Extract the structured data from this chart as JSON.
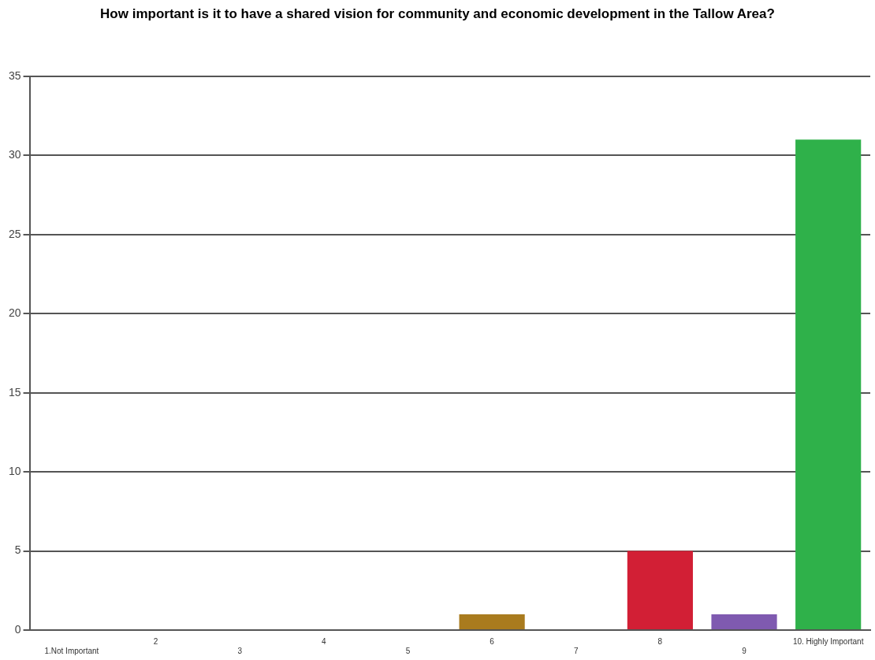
{
  "chart_data": {
    "type": "bar",
    "title": "How important is it to have a shared vision for community and economic development in the Tallow Area?",
    "categories": [
      "1.Not Important",
      "2",
      "3",
      "4",
      "5",
      "6",
      "7",
      "8",
      "9",
      "10. Highly Important"
    ],
    "values": [
      0,
      0,
      0,
      0,
      0,
      1,
      0,
      5,
      1,
      31
    ],
    "colors": [
      "#4f81bd",
      "#c0504d",
      "#9bbb59",
      "#8064a2",
      "#4bacc6",
      "#a97b1e",
      "#f79646",
      "#d21f35",
      "#7f5ab0",
      "#2fb14a"
    ],
    "ylim": [
      0,
      35
    ],
    "yticks": [
      0,
      5,
      10,
      15,
      20,
      25,
      30,
      35
    ],
    "grid": "y",
    "legend": false
  }
}
